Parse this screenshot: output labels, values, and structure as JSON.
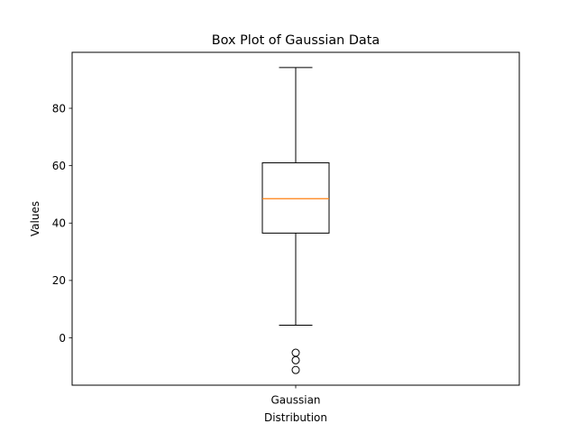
{
  "chart_data": {
    "type": "box",
    "title": "Box Plot of Gaussian Data",
    "xlabel": "Distribution",
    "ylabel": "Values",
    "categories": [
      "Gaussian"
    ],
    "ylim": [
      -16.5,
      99.5
    ],
    "yticks": [
      0,
      20,
      40,
      60,
      80
    ],
    "grid": false,
    "boxes": [
      {
        "label": "Gaussian",
        "whisker_low": 4.4,
        "q1": 36.5,
        "median": 48.5,
        "q3": 61.0,
        "whisker_high": 94.2,
        "outliers": [
          -5.2,
          -7.8,
          -11.2
        ]
      }
    ],
    "colors": {
      "box": "#000000",
      "median": "#ff7f0e",
      "outlier_edge": "#000000"
    }
  }
}
